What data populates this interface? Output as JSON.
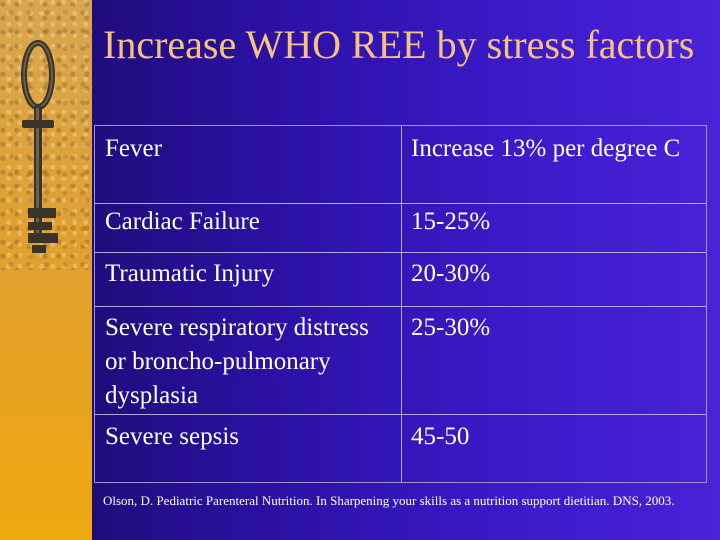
{
  "slide": {
    "title": "Increase WHO REE by stress factors",
    "rows": [
      {
        "factor": "Fever",
        "increase": "Increase 13% per degree C"
      },
      {
        "factor": "Cardiac Failure",
        "increase": "15-25%"
      },
      {
        "factor": "Traumatic Injury",
        "increase": "20-30%"
      },
      {
        "factor": "Severe respiratory distress or broncho-pulmonary dysplasia",
        "increase": "25-30%"
      },
      {
        "factor": "Severe sepsis",
        "increase": "45-50"
      }
    ],
    "citation": "Olson, D. Pediatric Parenteral Nutrition. In  Sharpening your skills as a nutrition support dietitian. DNS, 2003."
  },
  "colors": {
    "background_blue": "#2a10a0",
    "title_color": "#f5c280",
    "side_strip": "#e0a030"
  },
  "icons": [
    "key-icon"
  ]
}
